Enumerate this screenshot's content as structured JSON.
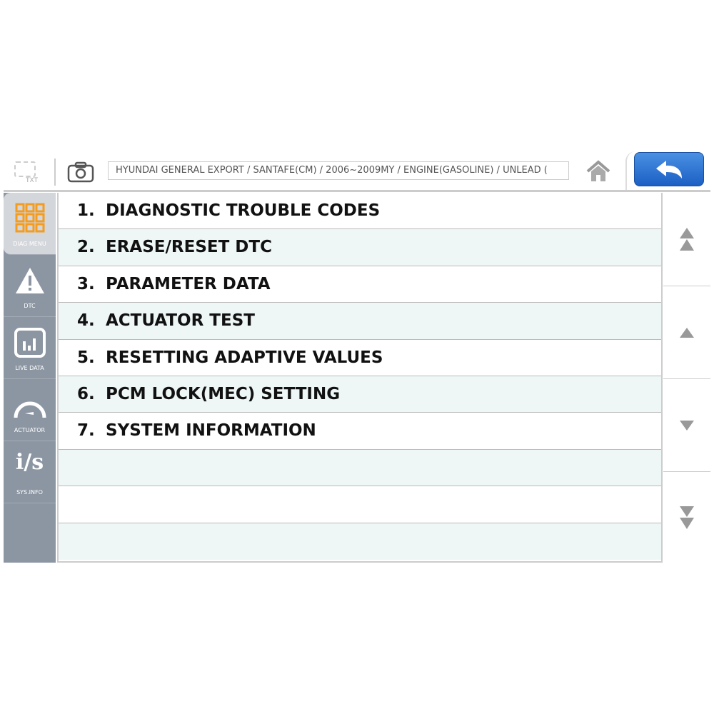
{
  "toolbar": {
    "txt_label": "TXT",
    "breadcrumb": "HYUNDAI GENERAL EXPORT / SANTAFE(CM) / 2006~2009MY / ENGINE(GASOLINE) / UNLEAD (",
    "back_color": "#2a6fd6"
  },
  "sidebar": {
    "items": [
      {
        "label": "DIAG MENU",
        "icon": "grid-icon",
        "active": true
      },
      {
        "label": "DTC",
        "icon": "warning-icon"
      },
      {
        "label": "LIVE DATA",
        "icon": "bar-chart-icon"
      },
      {
        "label": "ACTUATOR",
        "icon": "gauge-icon"
      },
      {
        "label": "SYS.INFO",
        "icon": "info-s-icon"
      }
    ]
  },
  "menu": {
    "items": [
      {
        "num": "1.",
        "label": "DIAGNOSTIC TROUBLE CODES"
      },
      {
        "num": "2.",
        "label": "ERASE/RESET DTC"
      },
      {
        "num": "3.",
        "label": "PARAMETER DATA"
      },
      {
        "num": "4.",
        "label": "ACTUATOR TEST"
      },
      {
        "num": "5.",
        "label": "RESETTING ADAPTIVE VALUES"
      },
      {
        "num": "6.",
        "label": "PCM LOCK(MEC) SETTING"
      },
      {
        "num": "7.",
        "label": "SYSTEM INFORMATION"
      }
    ]
  },
  "colors": {
    "accent": "#f39c1f",
    "sidebar": "#8c96a3",
    "row_alt": "#eef6f6"
  }
}
